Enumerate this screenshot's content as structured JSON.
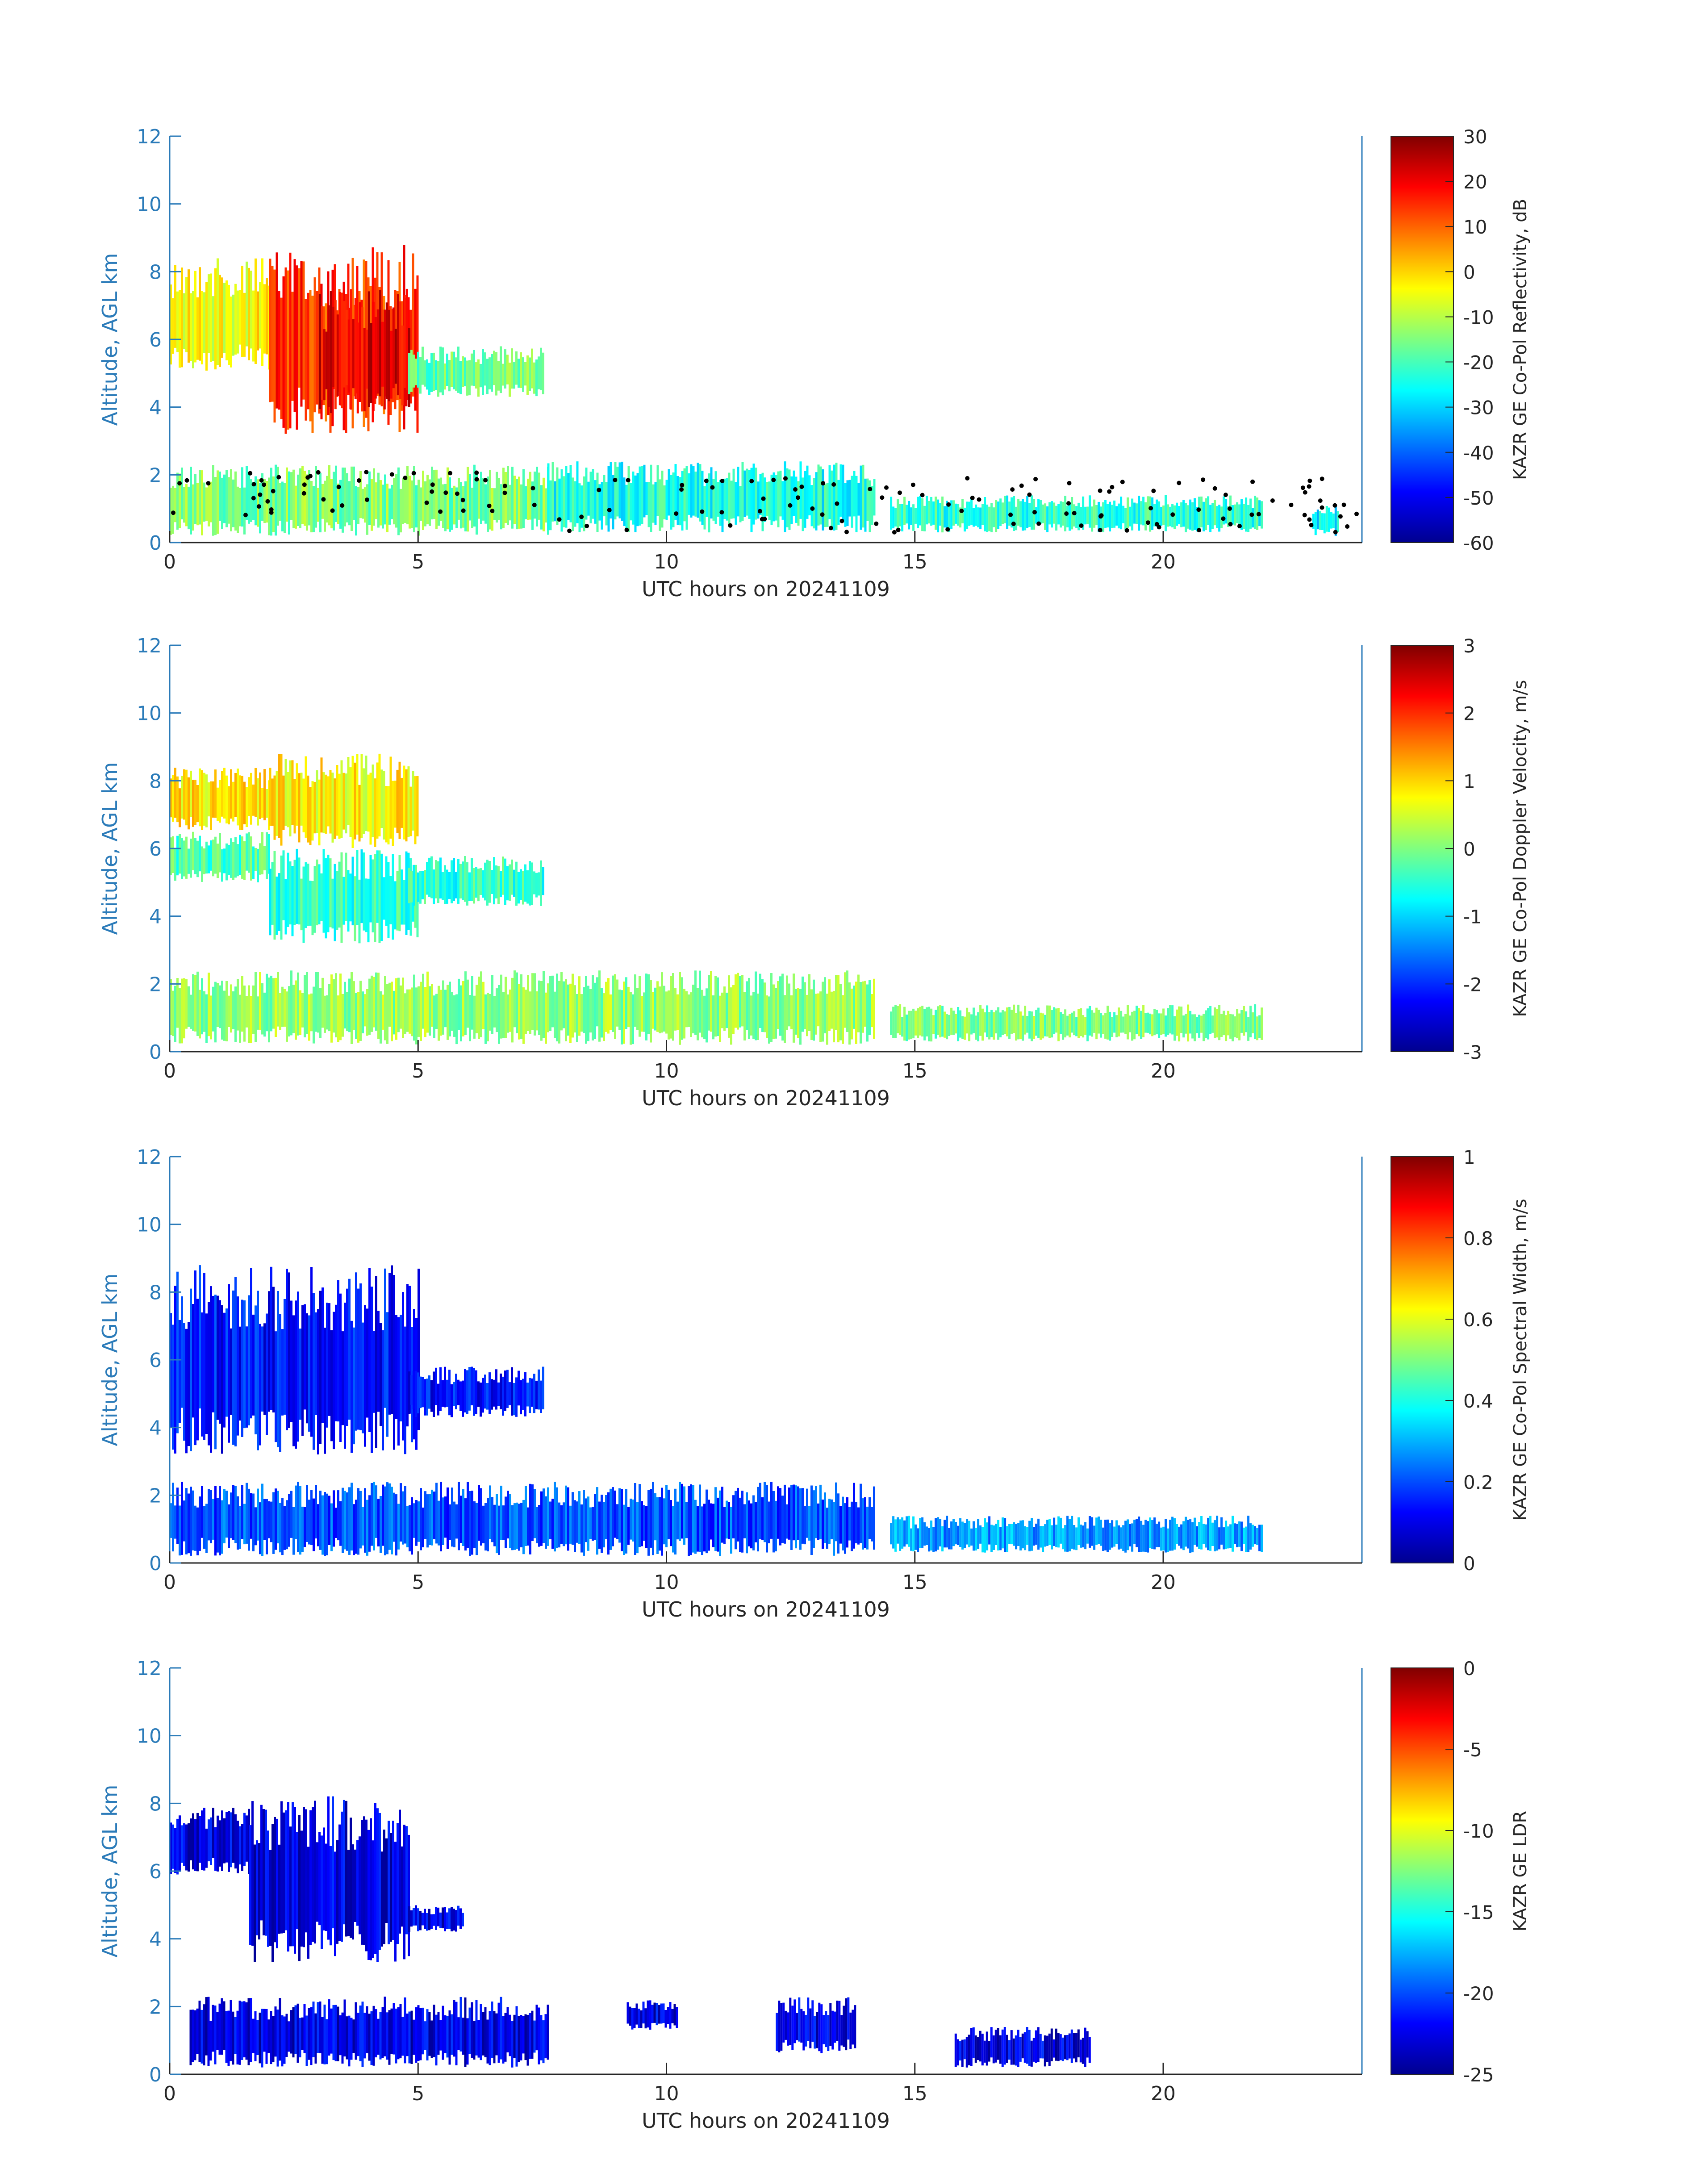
{
  "figure": {
    "common_xlabel": "UTC hours on 20241109"
  },
  "chart_data": [
    {
      "type": "heatmap",
      "title": "",
      "xlabel": "UTC hours on 20241109",
      "ylabel": "Altitude, AGL km",
      "xlim": [
        0,
        24
      ],
      "ylim": [
        0,
        12
      ],
      "x_ticks": [
        0,
        5,
        10,
        15,
        20
      ],
      "y_ticks": [
        0,
        2,
        4,
        6,
        8,
        10,
        12
      ],
      "colorbar": {
        "label": "KAZR GE Co-Pol Reflectivity, dB",
        "min": -60,
        "max": 30,
        "ticks": [
          30,
          20,
          10,
          0,
          -10,
          -20,
          -30,
          -40,
          -50,
          -60
        ],
        "colormap": "jet"
      },
      "has_ceilometer_overlay": true,
      "regions": [
        {
          "x": [
            0.0,
            2.0
          ],
          "y": [
            5.0,
            8.4
          ],
          "level": 0.62
        },
        {
          "x": [
            2.0,
            5.0
          ],
          "y": [
            3.2,
            8.8
          ],
          "level": 0.82
        },
        {
          "x": [
            3.0,
            4.8
          ],
          "y": [
            3.8,
            7.5
          ],
          "level": 0.9
        },
        {
          "x": [
            4.8,
            7.5
          ],
          "y": [
            4.3,
            5.8
          ],
          "level": 0.48
        },
        {
          "x": [
            0.0,
            7.6
          ],
          "y": [
            0.2,
            2.3
          ],
          "level": 0.5
        },
        {
          "x": [
            7.6,
            14.2
          ],
          "y": [
            0.3,
            2.4
          ],
          "level": 0.4
        },
        {
          "x": [
            14.5,
            22.0
          ],
          "y": [
            0.3,
            1.4
          ],
          "level": 0.42
        },
        {
          "x": [
            23.0,
            23.5
          ],
          "y": [
            0.2,
            1.1
          ],
          "level": 0.35
        }
      ]
    },
    {
      "type": "heatmap",
      "title": "",
      "xlabel": "UTC hours on 20241109",
      "ylabel": "Altitude, AGL km",
      "xlim": [
        0,
        24
      ],
      "ylim": [
        0,
        12
      ],
      "x_ticks": [
        0,
        5,
        10,
        15,
        20
      ],
      "y_ticks": [
        0,
        2,
        4,
        6,
        8,
        10,
        12
      ],
      "colorbar": {
        "label": "KAZR GE Co-Pol Doppler Velocity, m/s",
        "min": -3,
        "max": 3,
        "ticks": [
          3,
          2,
          1,
          0,
          -1,
          -2,
          -3
        ],
        "colormap": "jet"
      },
      "has_ceilometer_overlay": false,
      "regions": [
        {
          "x": [
            0.0,
            2.0
          ],
          "y": [
            6.5,
            8.4
          ],
          "level": 0.64
        },
        {
          "x": [
            0.0,
            2.0
          ],
          "y": [
            5.0,
            6.5
          ],
          "level": 0.45
        },
        {
          "x": [
            2.0,
            5.0
          ],
          "y": [
            6.0,
            8.8
          ],
          "level": 0.63
        },
        {
          "x": [
            2.0,
            5.0
          ],
          "y": [
            3.2,
            6.0
          ],
          "level": 0.42
        },
        {
          "x": [
            4.8,
            7.5
          ],
          "y": [
            4.3,
            5.8
          ],
          "level": 0.42
        },
        {
          "x": [
            0.0,
            14.2
          ],
          "y": [
            0.2,
            2.4
          ],
          "level": 0.52
        },
        {
          "x": [
            14.5,
            22.0
          ],
          "y": [
            0.3,
            1.4
          ],
          "level": 0.5
        }
      ]
    },
    {
      "type": "heatmap",
      "title": "",
      "xlabel": "UTC hours on 20241109",
      "ylabel": "Altitude, AGL km",
      "xlim": [
        0,
        24
      ],
      "ylim": [
        0,
        12
      ],
      "x_ticks": [
        0,
        5,
        10,
        15,
        20
      ],
      "y_ticks": [
        0,
        2,
        4,
        6,
        8,
        10,
        12
      ],
      "colorbar": {
        "label": "KAZR GE Co-Pol Spectral Width, m/s",
        "min": 0,
        "max": 1,
        "ticks": [
          1,
          0.8,
          0.6,
          0.4,
          0.2,
          0
        ],
        "colormap": "jet"
      },
      "has_ceilometer_overlay": false,
      "regions": [
        {
          "x": [
            0.0,
            5.0
          ],
          "y": [
            3.2,
            8.8
          ],
          "level": 0.14
        },
        {
          "x": [
            4.8,
            7.5
          ],
          "y": [
            4.3,
            5.8
          ],
          "level": 0.14
        },
        {
          "x": [
            0.0,
            14.2
          ],
          "y": [
            0.2,
            2.4
          ],
          "level": 0.2
        },
        {
          "x": [
            14.5,
            22.0
          ],
          "y": [
            0.3,
            1.4
          ],
          "level": 0.28
        }
      ]
    },
    {
      "type": "heatmap",
      "title": "",
      "xlabel": "UTC hours on 20241109",
      "ylabel": "Altitude, AGL km",
      "xlim": [
        0,
        24
      ],
      "ylim": [
        0,
        12
      ],
      "x_ticks": [
        0,
        5,
        10,
        15,
        20
      ],
      "y_ticks": [
        0,
        2,
        4,
        6,
        8,
        10,
        12
      ],
      "colorbar": {
        "label": "KAZR GE LDR",
        "min": -25,
        "max": 0,
        "ticks": [
          0,
          -5,
          -10,
          -15,
          -20,
          -25
        ],
        "colormap": "jet"
      },
      "has_ceilometer_overlay": false,
      "regions": [
        {
          "x": [
            0.0,
            1.6
          ],
          "y": [
            5.9,
            7.9
          ],
          "level": 0.1
        },
        {
          "x": [
            1.6,
            4.8
          ],
          "y": [
            3.3,
            8.3
          ],
          "level": 0.1
        },
        {
          "x": [
            4.8,
            5.9
          ],
          "y": [
            4.2,
            5.0
          ],
          "level": 0.1
        },
        {
          "x": [
            0.4,
            7.6
          ],
          "y": [
            0.2,
            2.3
          ],
          "level": 0.1
        },
        {
          "x": [
            9.2,
            10.2
          ],
          "y": [
            1.3,
            2.2
          ],
          "level": 0.1
        },
        {
          "x": [
            12.2,
            13.8
          ],
          "y": [
            0.6,
            2.3
          ],
          "level": 0.1
        },
        {
          "x": [
            15.8,
            18.5
          ],
          "y": [
            0.2,
            1.4
          ],
          "level": 0.1
        }
      ]
    }
  ]
}
